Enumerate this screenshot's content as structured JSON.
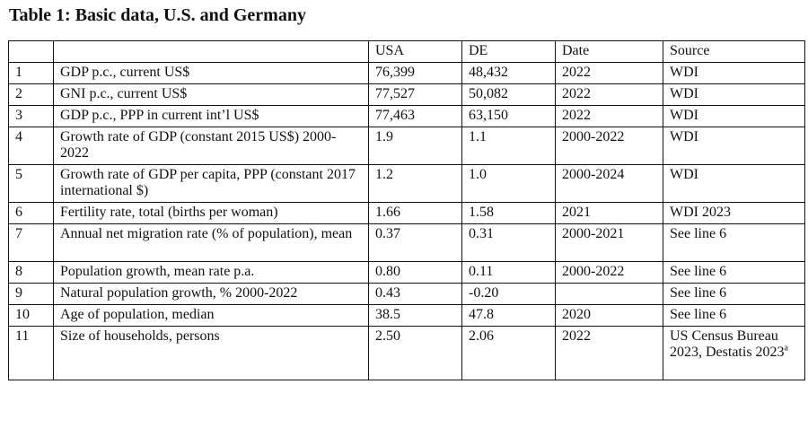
{
  "title": "Table 1: Basic data, U.S. and Germany",
  "columns": [
    "",
    "",
    "USA",
    "DE",
    "Date",
    "Source"
  ],
  "rows": [
    {
      "num": "1",
      "label": "GDP p.c., current US$",
      "usa": "76,399",
      "de": "48,432",
      "date": "2022",
      "source": "WDI"
    },
    {
      "num": "2",
      "label": "GNI p.c., current US$",
      "usa": "77,527",
      "de": "50,082",
      "date": "2022",
      "source": "WDI"
    },
    {
      "num": "3",
      "label": "GDP p.c., PPP in current int’l US$",
      "usa": "77,463",
      "de": "63,150",
      "date": "2022",
      "source": "WDI"
    },
    {
      "num": "4",
      "label": "Growth rate of GDP (constant 2015 US$) 2000-2022",
      "usa": "1.9",
      "de": "1.1",
      "date": "2000-2022",
      "source": "WDI"
    },
    {
      "num": "5",
      "label": "Growth rate of GDP per capita, PPP (constant 2017 international $)",
      "usa": "1.2",
      "de": "1.0",
      "date": "2000-2024",
      "source": "WDI"
    },
    {
      "num": "6",
      "label": "Fertility rate, total (births per woman)",
      "usa": "1.66",
      "de": "1.58",
      "date": "2021",
      "source": "WDI 2023"
    },
    {
      "num": "7",
      "label": "Annual net migration rate (% of population), mean",
      "usa": "0.37",
      "de": "0.31",
      "date": "2000-2021",
      "source": "See line 6"
    },
    {
      "num": "8",
      "label": "Population growth, mean rate p.a.",
      "usa": "0.80",
      "de": "0.11",
      "date": "2000-2022",
      "source": "See line 6"
    },
    {
      "num": "9",
      "label": "Natural population growth, % 2000-2022",
      "usa": "0.43",
      "de": "-0.20",
      "date": "",
      "source": "See line 6"
    },
    {
      "num": "10",
      "label": "Age of population, median",
      "usa": "38.5",
      "de": "47.8",
      "date": "2020",
      "source": "See line 6"
    },
    {
      "num": "11",
      "label": "Size of households, persons",
      "usa": "2.50",
      "de": "2.06",
      "date": "2022",
      "source": "US Census Bureau 2023, Destatis 2023",
      "source_sup": "a"
    }
  ]
}
